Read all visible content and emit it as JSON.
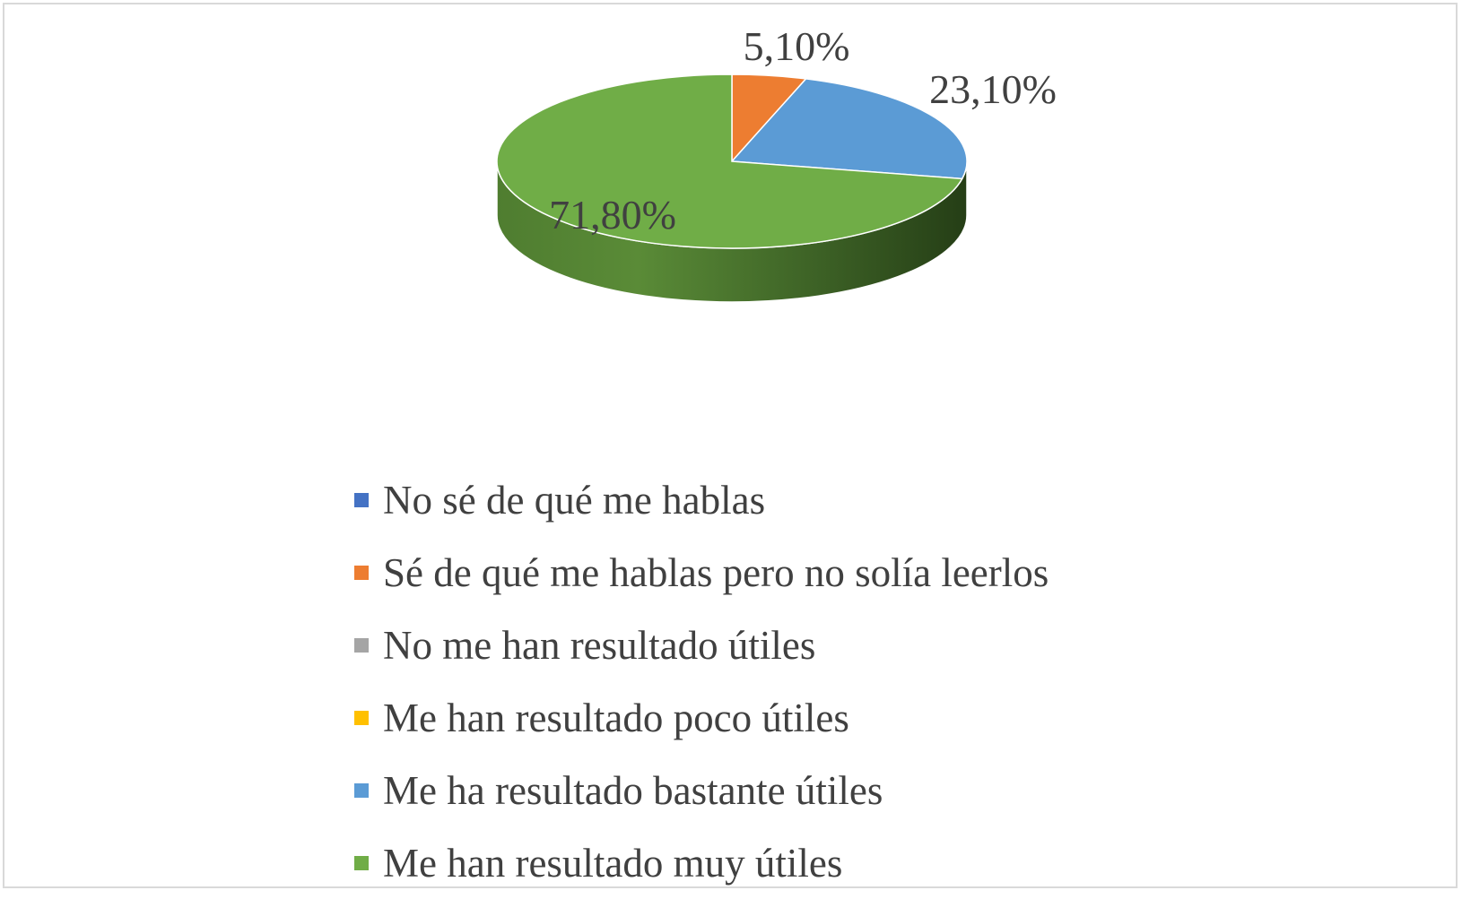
{
  "chart_data": {
    "type": "pie",
    "style": "3d",
    "categories": [
      "No sé de qué me hablas",
      "Sé de qué me hablas pero no solía leerlos",
      "No me han resultado útiles",
      "Me han resultado poco útiles",
      "Me ha resultado bastante útiles",
      "Me han resultado muy útiles"
    ],
    "values": [
      0,
      5.1,
      0,
      0,
      23.1,
      71.8
    ],
    "data_labels": [
      "",
      "5,10%",
      "",
      "",
      "23,10%",
      "71,80%"
    ],
    "colors": [
      "#4472c4",
      "#ed7d31",
      "#a5a5a5",
      "#ffc000",
      "#5b9bd5",
      "#70ad47"
    ],
    "legend_position": "bottom",
    "title": ""
  }
}
